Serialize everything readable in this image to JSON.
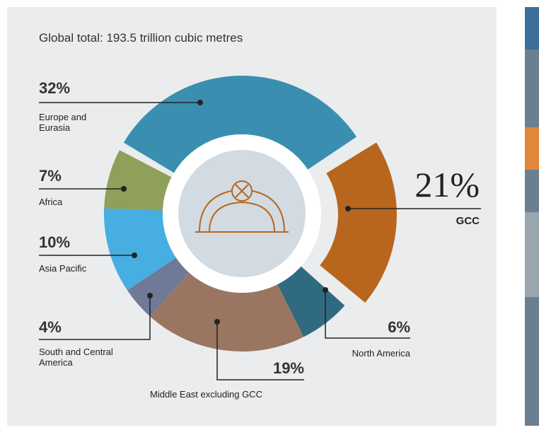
{
  "chart_data": {
    "type": "donut",
    "title": "Global total: 193.5 trillion cubic metres",
    "categories": [
      "Europe and Eurasia",
      "GCC",
      "North America",
      "Middle East excluding GCC",
      "South and Central America",
      "Asia Pacific",
      "Africa"
    ],
    "values": [
      32,
      21,
      6,
      19,
      4,
      10,
      7
    ],
    "value_labels": [
      "32%",
      "21%",
      "6%",
      "19%",
      "4%",
      "10%",
      "7%"
    ],
    "colors": [
      "#3a8fb0",
      "#b8661e",
      "#2f6a80",
      "#9a7562",
      "#6f7a96",
      "#46aee0",
      "#8fa05a"
    ],
    "exploded": [
      false,
      true,
      false,
      false,
      false,
      false,
      false
    ]
  }
}
